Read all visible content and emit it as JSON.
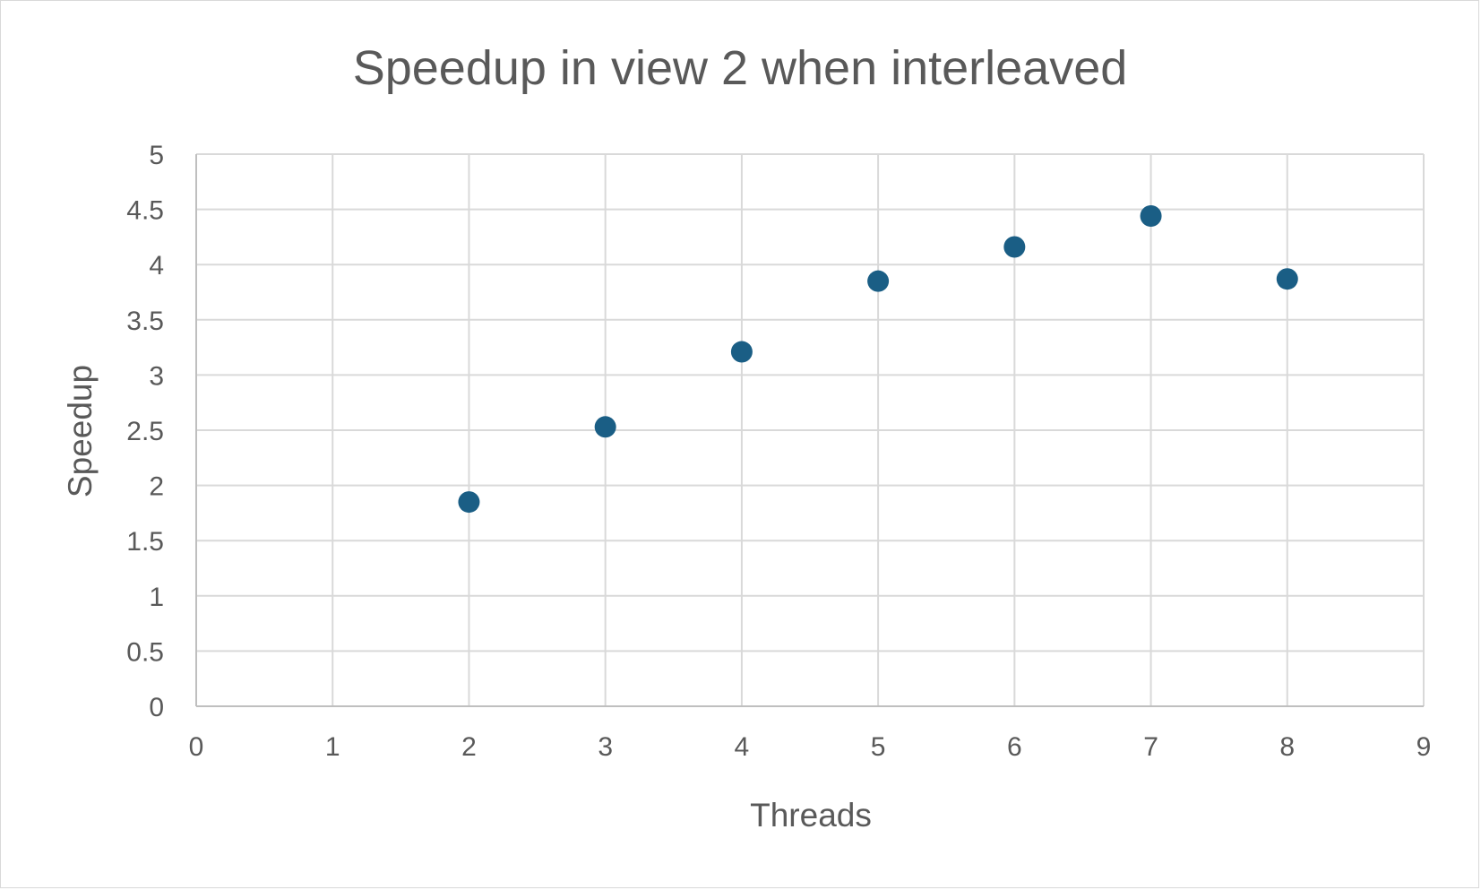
{
  "chart_data": {
    "type": "scatter",
    "title": "Speedup in view 2 when interleaved",
    "xlabel": "Threads",
    "ylabel": "Speedup",
    "xlim": [
      0,
      9
    ],
    "ylim": [
      0,
      5
    ],
    "x_ticks": [
      "0",
      "1",
      "2",
      "3",
      "4",
      "5",
      "6",
      "7",
      "8",
      "9"
    ],
    "y_ticks": [
      "0",
      "0.5",
      "1",
      "1.5",
      "2",
      "2.5",
      "3",
      "3.5",
      "4",
      "4.5",
      "5"
    ],
    "x_tick_values": [
      0,
      1,
      2,
      3,
      4,
      5,
      6,
      7,
      8,
      9
    ],
    "y_tick_values": [
      0,
      0.5,
      1,
      1.5,
      2,
      2.5,
      3,
      3.5,
      4,
      4.5,
      5
    ],
    "grid": true,
    "legend": "none",
    "series": [
      {
        "color": "#1a5e85",
        "points": [
          {
            "x": 2,
            "y": 1.85
          },
          {
            "x": 3,
            "y": 2.53
          },
          {
            "x": 4,
            "y": 3.21
          },
          {
            "x": 5,
            "y": 3.85
          },
          {
            "x": 6,
            "y": 4.16
          },
          {
            "x": 7,
            "y": 4.44
          },
          {
            "x": 8,
            "y": 3.87
          }
        ]
      }
    ]
  }
}
